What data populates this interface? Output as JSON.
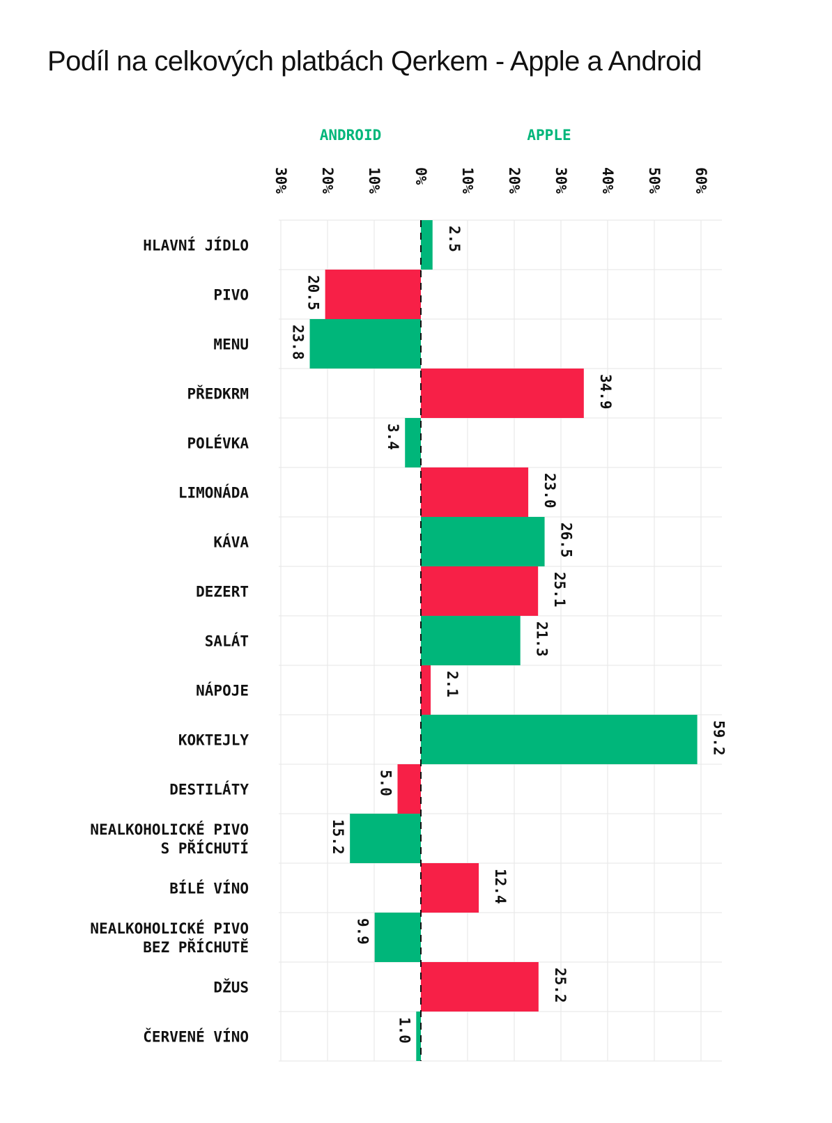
{
  "title": "Podíl na celkových platbách Qerkem - Apple a Android",
  "chart_data": {
    "type": "bar",
    "orientation": "horizontal-diverging",
    "side_labels": {
      "left": "ANDROID",
      "right": "APPLE"
    },
    "x_ticks_left": [
      "30%",
      "20%",
      "10%"
    ],
    "x_ticks_right": [
      "0%",
      "10%",
      "20%",
      "30%",
      "40%",
      "50%",
      "60%"
    ],
    "xlim": [
      -30,
      60
    ],
    "grid": true,
    "colors": {
      "green": "#00b67a",
      "red": "#f72047",
      "accent": "#00b67a"
    },
    "rows": [
      {
        "label": [
          "HLAVNÍ JÍDLO"
        ],
        "value": 2.5,
        "value_label": "2.5",
        "color": "green"
      },
      {
        "label": [
          "PIVO"
        ],
        "value": -20.5,
        "value_label": "20.5",
        "color": "red"
      },
      {
        "label": [
          "MENU"
        ],
        "value": -23.8,
        "value_label": "23.8",
        "color": "green"
      },
      {
        "label": [
          "PŘEDKRM"
        ],
        "value": 34.9,
        "value_label": "34.9",
        "color": "red"
      },
      {
        "label": [
          "POLÉVKA"
        ],
        "value": -3.4,
        "value_label": "3.4",
        "color": "green"
      },
      {
        "label": [
          "LIMONÁDA"
        ],
        "value": 23.0,
        "value_label": "23.0",
        "color": "red"
      },
      {
        "label": [
          "KÁVA"
        ],
        "value": 26.5,
        "value_label": "26.5",
        "color": "green"
      },
      {
        "label": [
          "DEZERT"
        ],
        "value": 25.1,
        "value_label": "25.1",
        "color": "red"
      },
      {
        "label": [
          "SALÁT"
        ],
        "value": 21.3,
        "value_label": "21.3",
        "color": "green"
      },
      {
        "label": [
          "NÁPOJE"
        ],
        "value": 2.1,
        "value_label": "2.1",
        "color": "red"
      },
      {
        "label": [
          "KOKTEJLY"
        ],
        "value": 59.2,
        "value_label": "59.2",
        "color": "green"
      },
      {
        "label": [
          "DESTILÁTY"
        ],
        "value": -5.0,
        "value_label": "5.0",
        "color": "red"
      },
      {
        "label": [
          "NEALKOHOLICKÉ PIVO",
          "S PŘÍCHUTÍ"
        ],
        "value": -15.2,
        "value_label": "15.2",
        "color": "green"
      },
      {
        "label": [
          "BÍLÉ VÍNO"
        ],
        "value": 12.4,
        "value_label": "12.4",
        "color": "red"
      },
      {
        "label": [
          "NEALKOHOLICKÉ PIVO",
          "BEZ PŘÍCHUTĚ"
        ],
        "value": -9.9,
        "value_label": "9.9",
        "color": "green"
      },
      {
        "label": [
          "DŽUS"
        ],
        "value": 25.2,
        "value_label": "25.2",
        "color": "red"
      },
      {
        "label": [
          "ČERVENÉ VÍNO"
        ],
        "value": -1.0,
        "value_label": "1.0",
        "color": "green"
      }
    ]
  }
}
